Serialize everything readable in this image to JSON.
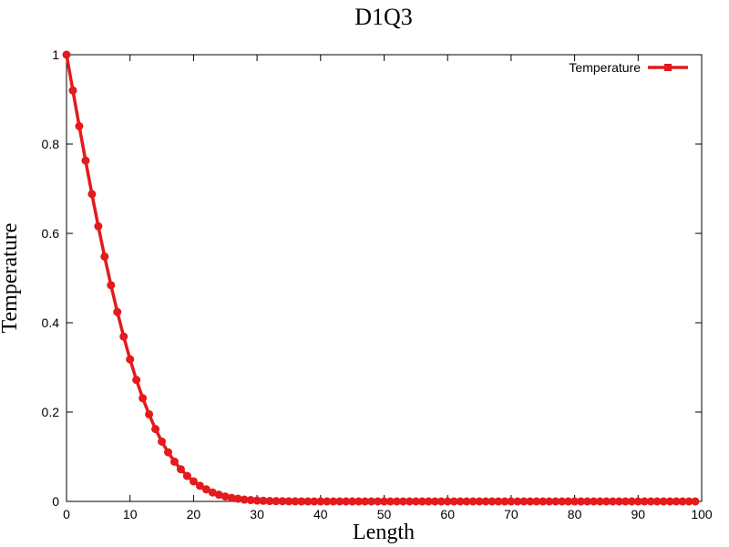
{
  "chart_data": {
    "type": "line",
    "title": "D1Q3",
    "xlabel": "Length",
    "ylabel": "Temperature",
    "xlim": [
      0,
      100
    ],
    "ylim": [
      0,
      1
    ],
    "xticks": [
      "0",
      "10",
      "20",
      "30",
      "40",
      "50",
      "60",
      "70",
      "80",
      "90",
      "100"
    ],
    "yticks": [
      "0",
      "0.2",
      "0.4",
      "0.6",
      "0.8",
      "1"
    ],
    "grid": false,
    "legend_position": "top-right",
    "colors": {
      "series": "#e41a1c",
      "axis": "#000000"
    },
    "series": [
      {
        "name": "Temperature",
        "x": [
          0,
          1,
          2,
          3,
          4,
          5,
          6,
          7,
          8,
          9,
          10,
          11,
          12,
          13,
          14,
          15,
          16,
          17,
          18,
          19,
          20,
          21,
          22,
          23,
          24,
          25,
          26,
          27,
          28,
          29,
          30,
          31,
          32,
          33,
          34,
          35,
          36,
          37,
          38,
          39,
          40,
          41,
          42,
          43,
          44,
          45,
          46,
          47,
          48,
          49,
          50,
          51,
          52,
          53,
          54,
          55,
          56,
          57,
          58,
          59,
          60,
          61,
          62,
          63,
          64,
          65,
          66,
          67,
          68,
          69,
          70,
          71,
          72,
          73,
          74,
          75,
          76,
          77,
          78,
          79,
          80,
          81,
          82,
          83,
          84,
          85,
          86,
          87,
          88,
          89,
          90,
          91,
          92,
          93,
          94,
          95,
          96,
          97,
          98,
          99
        ],
        "values": [
          1.0,
          0.92,
          0.84,
          0.763,
          0.688,
          0.616,
          0.548,
          0.484,
          0.424,
          0.369,
          0.318,
          0.272,
          0.231,
          0.195,
          0.162,
          0.134,
          0.11,
          0.089,
          0.072,
          0.057,
          0.045,
          0.035,
          0.027,
          0.02,
          0.015,
          0.011,
          0.008,
          0.006,
          0.004,
          0.003,
          0.002,
          0.0015,
          0.001,
          0.0007,
          0.0005,
          0.0003,
          0.0002,
          0.0001,
          0,
          0,
          0,
          0,
          0,
          0,
          0,
          0,
          0,
          0,
          0,
          0,
          0,
          0,
          0,
          0,
          0,
          0,
          0,
          0,
          0,
          0,
          0,
          0,
          0,
          0,
          0,
          0,
          0,
          0,
          0,
          0,
          0,
          0,
          0,
          0,
          0,
          0,
          0,
          0,
          0,
          0,
          0,
          0,
          0,
          0,
          0,
          0,
          0,
          0,
          0,
          0,
          0,
          0,
          0,
          0,
          0,
          0,
          0,
          0,
          0,
          0
        ]
      }
    ]
  }
}
